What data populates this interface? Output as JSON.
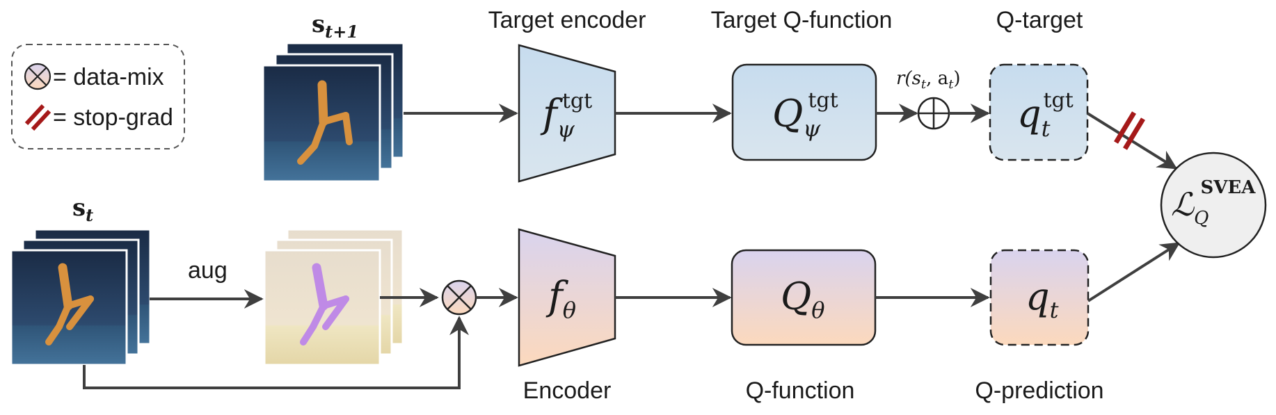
{
  "legend": {
    "data_mix": "= data-mix",
    "stop_grad": "= stop-grad"
  },
  "states": {
    "next": {
      "base": "s",
      "sub": "t+1"
    },
    "current": {
      "base": "s",
      "sub": "t"
    }
  },
  "aug_label": "aug",
  "reward": "r(s",
  "reward_sub": "t",
  "reward_mid": ", a",
  "reward_end": ")",
  "target_encoder": {
    "title": "Target encoder",
    "symbol": "f",
    "sub": "ψ",
    "sup": "tgt"
  },
  "target_q": {
    "title": "Target Q-function",
    "symbol": "Q",
    "sub": "ψ",
    "sup": "tgt"
  },
  "q_target": {
    "title": "Q-target",
    "symbol": "q",
    "sub": "t",
    "sup": "tgt"
  },
  "encoder": {
    "title": "Encoder",
    "symbol": "f",
    "sub": "θ"
  },
  "q_function": {
    "title": "Q-function",
    "symbol": "Q",
    "sub": "θ"
  },
  "q_prediction": {
    "title": "Q-prediction",
    "symbol": "q",
    "sub": "t"
  },
  "loss": {
    "symbol": "ℒ",
    "sub": "Q",
    "sup": "SVEA"
  },
  "colors": {
    "blue_top": "#c9dff0",
    "blue_bottom": "#d6e4ef",
    "purple_top": "#dcd3ec",
    "peach_bottom": "#fbdbbf",
    "arrow": "#3f3f3f",
    "stop_grad": "#a51919",
    "frame_dark": "#1f3552",
    "frame_light": "#e8dcc4"
  }
}
